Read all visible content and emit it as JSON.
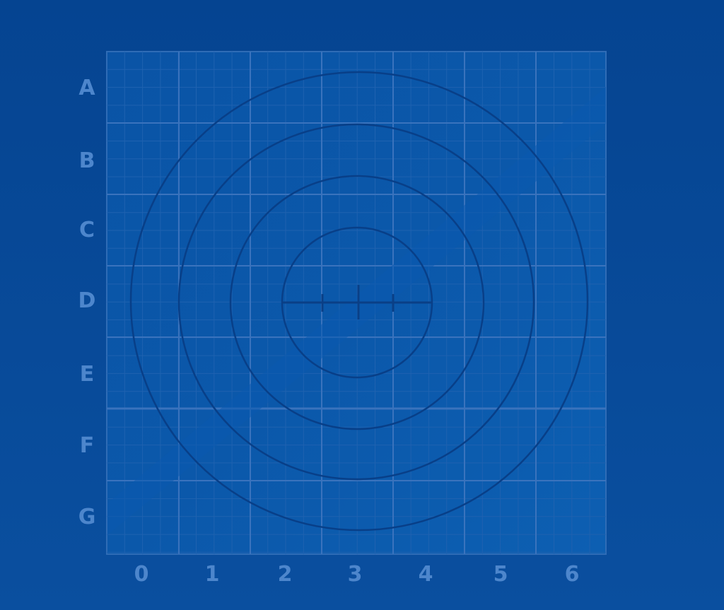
{
  "rows": [
    "A",
    "B",
    "C",
    "D",
    "E",
    "F",
    "G"
  ],
  "columns": [
    "0",
    "1",
    "2",
    "3",
    "4",
    "5",
    "6"
  ],
  "colors": {
    "background": "#054491",
    "grid_line": "#3a73bd",
    "grid_minor": "#1f62b0",
    "circle": "#083f88",
    "label": "#4d86cc",
    "stripe": "#0b5aae"
  }
}
